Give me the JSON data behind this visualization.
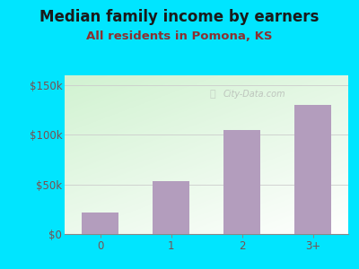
{
  "title": "Median family income by earners",
  "subtitle": "All residents in Pomona, KS",
  "categories": [
    "0",
    "1",
    "2",
    "3+"
  ],
  "values": [
    22000,
    53000,
    105000,
    130000
  ],
  "bar_color": "#b39dbd",
  "background_color": "#00e5ff",
  "title_color": "#1a1a1a",
  "subtitle_color": "#8b3030",
  "tick_label_color": "#7a5050",
  "ylim": [
    0,
    160000
  ],
  "yticks": [
    0,
    50000,
    100000,
    150000
  ],
  "ytick_labels": [
    "$0",
    "$50k",
    "$100k",
    "$150k"
  ],
  "title_fontsize": 12,
  "subtitle_fontsize": 9.5,
  "tick_fontsize": 8.5,
  "watermark": "City-Data.com"
}
